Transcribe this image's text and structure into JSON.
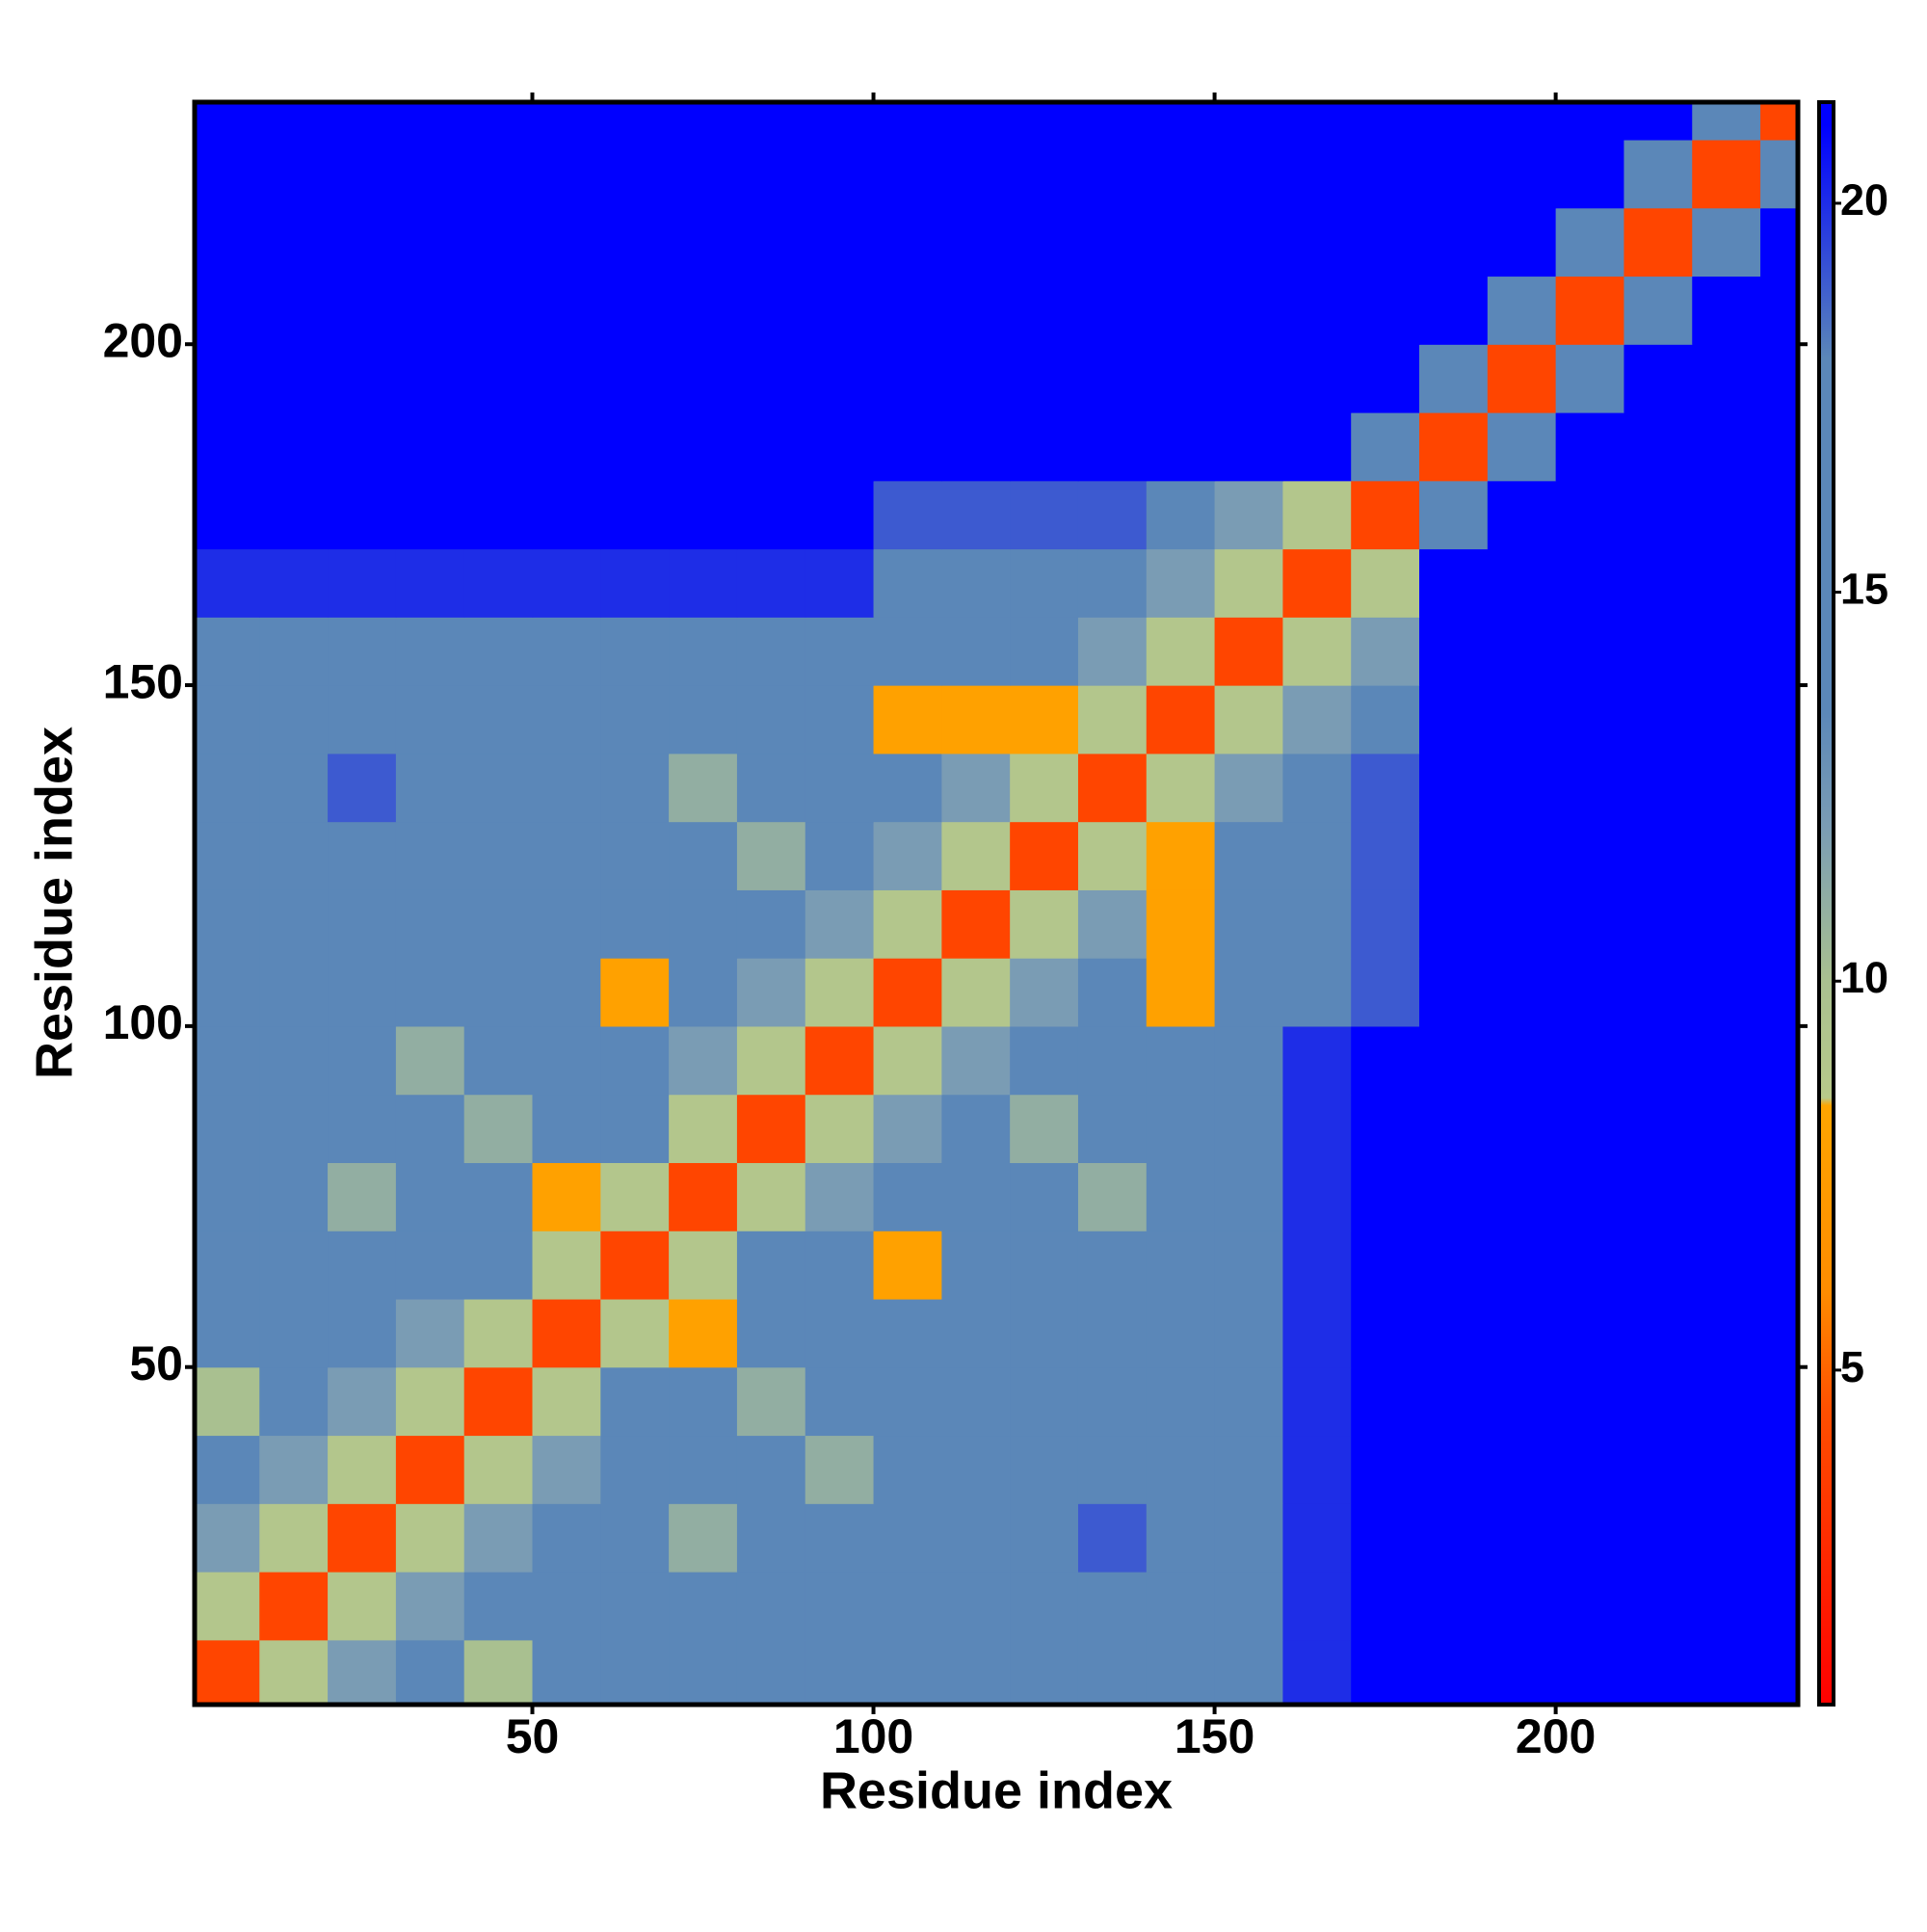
{
  "chart_data": {
    "type": "heatmap",
    "xlabel": "Residue index",
    "ylabel": "Residue index",
    "x": [
      5,
      15,
      25,
      35,
      45,
      55,
      65,
      75,
      85,
      95,
      105,
      115,
      125,
      135,
      145,
      155,
      165,
      175,
      185,
      195,
      205,
      215,
      225,
      235
    ],
    "y": [
      5,
      15,
      25,
      35,
      45,
      55,
      65,
      75,
      85,
      95,
      105,
      115,
      125,
      135,
      145,
      155,
      165,
      175,
      185,
      195,
      205,
      215,
      225,
      235
    ],
    "z": [
      [
        4,
        9,
        12,
        15,
        10,
        15,
        15,
        15,
        15,
        15,
        15,
        15,
        18,
        15,
        15,
        17,
        20,
        21,
        22,
        22,
        22,
        22,
        22,
        22
      ],
      [
        9,
        4,
        9,
        12,
        15,
        15,
        15,
        15,
        15,
        15,
        15,
        15,
        15,
        15,
        15,
        17,
        20,
        21,
        22,
        22,
        22,
        22,
        22,
        22
      ],
      [
        12,
        9,
        4,
        9,
        12,
        15,
        15,
        11,
        15,
        15,
        15,
        15,
        15,
        19,
        15,
        17,
        20,
        21,
        22,
        22,
        22,
        22,
        22,
        22
      ],
      [
        15,
        12,
        9,
        4,
        9,
        12,
        15,
        15,
        15,
        11,
        15,
        15,
        15,
        15,
        15,
        17,
        20,
        21,
        22,
        22,
        22,
        22,
        22,
        22
      ],
      [
        10,
        15,
        12,
        9,
        4,
        9,
        17,
        15,
        11,
        15,
        15,
        15,
        15,
        15,
        15,
        17,
        20,
        21,
        22,
        22,
        22,
        22,
        22,
        22
      ],
      [
        15,
        15,
        15,
        12,
        9,
        4,
        9,
        8,
        15,
        15,
        15,
        15,
        15,
        15,
        15,
        17,
        20,
        21,
        22,
        22,
        22,
        22,
        22,
        22
      ],
      [
        15,
        15,
        15,
        15,
        17,
        9,
        4,
        9,
        17,
        15,
        8,
        15,
        15,
        15,
        15,
        17,
        20,
        21,
        22,
        22,
        22,
        22,
        22,
        22
      ],
      [
        15,
        15,
        11,
        15,
        15,
        8,
        9,
        4,
        9,
        12,
        15,
        15,
        15,
        11,
        15,
        17,
        20,
        21,
        22,
        22,
        22,
        22,
        22,
        22
      ],
      [
        15,
        15,
        15,
        15,
        11,
        15,
        17,
        9,
        4,
        9,
        12,
        15,
        11,
        15,
        15,
        17,
        20,
        21,
        22,
        22,
        22,
        22,
        22,
        22
      ],
      [
        15,
        15,
        15,
        11,
        15,
        15,
        15,
        12,
        9,
        4,
        9,
        12,
        15,
        15,
        15,
        17,
        20,
        21,
        22,
        22,
        22,
        22,
        22,
        22
      ],
      [
        15,
        15,
        15,
        15,
        15,
        15,
        8,
        15,
        12,
        9,
        4,
        9,
        12,
        15,
        8,
        15,
        16,
        19,
        22,
        22,
        22,
        22,
        22,
        22
      ],
      [
        15,
        15,
        15,
        15,
        15,
        15,
        15,
        15,
        15,
        12,
        9,
        4,
        9,
        12,
        8,
        15,
        16,
        19,
        22,
        22,
        22,
        22,
        22,
        22
      ],
      [
        18,
        15,
        15,
        15,
        15,
        15,
        15,
        15,
        11,
        15,
        12,
        9,
        4,
        9,
        8,
        15,
        16,
        19,
        22,
        22,
        22,
        22,
        22,
        22
      ],
      [
        15,
        15,
        19,
        15,
        15,
        15,
        15,
        11,
        15,
        15,
        15,
        12,
        9,
        4,
        9,
        12,
        16,
        19,
        22,
        22,
        22,
        22,
        22,
        22
      ],
      [
        15,
        15,
        15,
        15,
        15,
        15,
        15,
        15,
        15,
        15,
        8,
        8,
        8,
        9,
        4,
        9,
        12,
        15,
        22,
        22,
        22,
        22,
        22,
        22
      ],
      [
        17,
        17,
        17,
        17,
        17,
        17,
        17,
        17,
        17,
        17,
        15,
        15,
        15,
        12,
        9,
        4,
        9,
        12,
        22,
        22,
        22,
        22,
        22,
        22
      ],
      [
        20,
        20,
        20,
        20,
        20,
        20,
        20,
        20,
        20,
        20,
        16,
        16,
        16,
        16,
        12,
        9,
        4,
        9,
        22,
        22,
        22,
        22,
        22,
        22
      ],
      [
        21,
        21,
        21,
        21,
        21,
        21,
        21,
        21,
        21,
        21,
        19,
        19,
        19,
        19,
        15,
        12,
        9,
        4,
        16,
        22,
        22,
        22,
        22,
        22
      ],
      [
        22,
        22,
        22,
        22,
        22,
        22,
        22,
        22,
        22,
        22,
        22,
        22,
        22,
        22,
        22,
        22,
        22,
        16,
        4,
        16,
        22,
        22,
        22,
        22
      ],
      [
        22,
        22,
        22,
        22,
        22,
        22,
        22,
        22,
        22,
        22,
        22,
        22,
        22,
        22,
        22,
        22,
        22,
        22,
        16,
        4,
        16,
        22,
        22,
        22
      ],
      [
        22,
        22,
        22,
        22,
        22,
        22,
        22,
        22,
        22,
        22,
        22,
        22,
        22,
        22,
        22,
        22,
        22,
        22,
        22,
        16,
        4,
        16,
        22,
        22
      ],
      [
        22,
        22,
        22,
        22,
        22,
        22,
        22,
        22,
        22,
        22,
        22,
        22,
        22,
        22,
        22,
        22,
        22,
        22,
        22,
        22,
        16,
        4,
        16,
        22
      ],
      [
        22,
        22,
        22,
        22,
        22,
        22,
        22,
        22,
        22,
        22,
        22,
        22,
        22,
        22,
        22,
        22,
        22,
        22,
        22,
        22,
        22,
        16,
        4,
        16
      ],
      [
        22,
        22,
        22,
        22,
        22,
        22,
        22,
        22,
        22,
        22,
        22,
        22,
        22,
        22,
        22,
        22,
        22,
        22,
        22,
        22,
        22,
        22,
        16,
        4
      ]
    ],
    "xlim": [
      0.5,
      235.5
    ],
    "ylim": [
      0.5,
      235.5
    ],
    "xticks": [
      50,
      100,
      150,
      200
    ],
    "yticks": [
      50,
      100,
      150,
      200
    ],
    "zlim": [
      0.7,
      21.3
    ],
    "zticks": [
      5,
      10,
      15,
      20
    ],
    "colorscale": [
      [
        0.7,
        "#ff0000"
      ],
      [
        4.5,
        "#ff5000"
      ],
      [
        6,
        "#ff8c00"
      ],
      [
        8.4,
        "#ffa500"
      ],
      [
        8.5,
        "#b8c98a"
      ],
      [
        10,
        "#a9c090"
      ],
      [
        12,
        "#7a9cb4"
      ],
      [
        13.5,
        "#5b87b8"
      ],
      [
        18,
        "#5b87b8"
      ],
      [
        21,
        "#0000ff"
      ]
    ]
  }
}
